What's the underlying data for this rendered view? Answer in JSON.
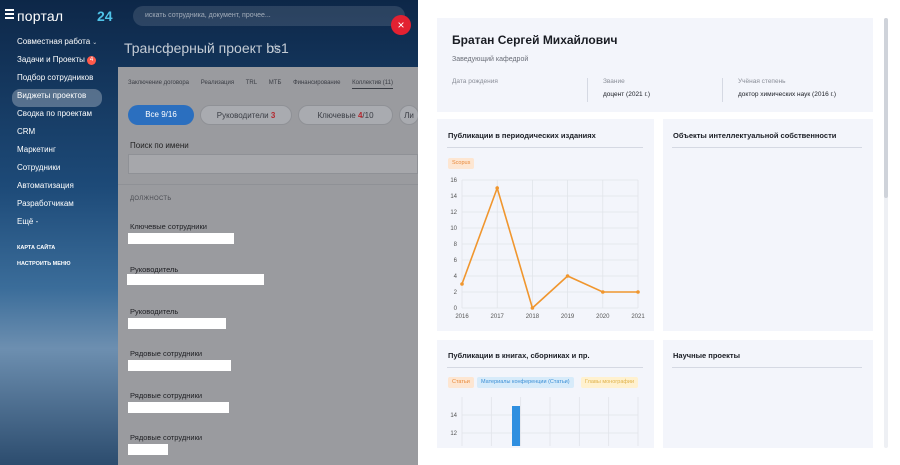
{
  "header": {
    "logo_text": "портал",
    "logo_number": "24",
    "search_placeholder": "искать сотрудника, документ, прочее..."
  },
  "menu": {
    "items": [
      {
        "label": "Совместная работа",
        "chevron": "⌄"
      },
      {
        "label": "Задачи и Проекты",
        "badge": "4"
      },
      {
        "label": "Подбор сотрудников"
      },
      {
        "label": "Виджеты проектов",
        "active": true
      },
      {
        "label": "Сводка по проектам"
      },
      {
        "label": "CRM"
      },
      {
        "label": "Маркетинг"
      },
      {
        "label": "Сотрудники"
      },
      {
        "label": "Автоматизация"
      },
      {
        "label": "Разработчикам"
      },
      {
        "label": "Ещё -"
      }
    ],
    "small_links": [
      "КАРТА САЙТА",
      "НАСТРОИТЬ МЕНЮ"
    ]
  },
  "project": {
    "title": "Трансферный проект bs1",
    "tabs": [
      "Заключение договора",
      "Реализация",
      "TRL",
      "МТБ",
      "Финансирование",
      "Коллектив (11)"
    ],
    "active_tab": "Коллектив (11)",
    "chips": [
      {
        "label": "Все 9/16"
      },
      {
        "label": "Руководители",
        "count": "3"
      },
      {
        "label": "Ключевые",
        "count_a": "4",
        "count_b": "/10"
      },
      {
        "label": "Ли"
      }
    ],
    "search_label": "Поиск по имени",
    "column_header": "ДОЛЖНОСТЬ",
    "rows": [
      "Ключевые сотрудники",
      "Руководитель",
      "Руководитель",
      "Рядовые сотрудники",
      "Рядовые сотрудники",
      "Рядовые сотрудники"
    ]
  },
  "close_icon": "×",
  "person": {
    "name": "Братан Сергей Михайлович",
    "role": "Заведующий кафедрой",
    "birth_label": "Дата рождения",
    "birth_value": "",
    "title_label": "Звание",
    "title_value": "доцент (2021 г.)",
    "degree_label": "Учёная степень",
    "degree_value": "доктор химических наук (2016 г.)"
  },
  "cards": {
    "periodicals_title": "Публикации в периодических изданиях",
    "periodicals_tag": "Scopus",
    "ip_title": "Объекты интеллектуальной собственности",
    "books_title": "Публикации в книгах, сборниках и пр.",
    "books_tags": [
      "Статьи",
      "Материалы конференции (Статьи)",
      "Главы монографии"
    ],
    "research_title": "Научные проекты"
  },
  "colors": {
    "accent_blue": "#2b6fbf",
    "close_red": "#e32131",
    "line_orange": "#f0962e",
    "bar_blue": "#2f8fe0"
  },
  "chart_data": [
    {
      "type": "line",
      "title": "Публикации в периодических изданиях",
      "x": [
        2016,
        2017,
        2018,
        2019,
        2020,
        2021
      ],
      "series": [
        {
          "name": "Scopus",
          "values": [
            3,
            15,
            0,
            4,
            2,
            2
          ]
        }
      ],
      "ylim": [
        0,
        16
      ],
      "yticks": [
        0,
        2,
        4,
        6,
        8,
        10,
        12,
        14,
        16
      ],
      "grid": true
    },
    {
      "type": "bar",
      "title": "Публикации в книгах, сборниках и пр.",
      "series": [
        {
          "name": "Статьи",
          "values": [
            15
          ]
        },
        {
          "name": "Материалы конференции (Статьи)",
          "values": []
        },
        {
          "name": "Главы монографии",
          "values": []
        }
      ],
      "visible_yticks": [
        12,
        14
      ],
      "grid": true
    }
  ]
}
